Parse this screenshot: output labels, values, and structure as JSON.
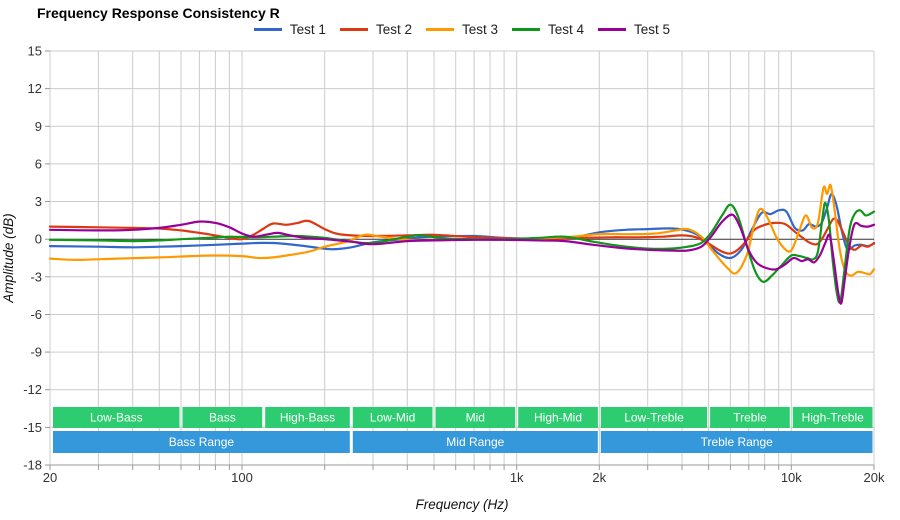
{
  "title": "Frequency Response Consistency R",
  "axes": {
    "x": {
      "label": "Frequency (Hz)",
      "scale": "log",
      "min": 20,
      "max": 20000,
      "ticks": [
        {
          "f": 20,
          "label": "20"
        },
        {
          "f": 100,
          "label": "100"
        },
        {
          "f": 1000,
          "label": "1k"
        },
        {
          "f": 2000,
          "label": "2k"
        },
        {
          "f": 10000,
          "label": "10k"
        },
        {
          "f": 20000,
          "label": "20k"
        }
      ],
      "gridlines": [
        20,
        30,
        40,
        50,
        60,
        70,
        80,
        90,
        100,
        200,
        300,
        400,
        500,
        600,
        700,
        800,
        900,
        1000,
        2000,
        3000,
        4000,
        5000,
        6000,
        7000,
        8000,
        9000,
        10000,
        20000
      ]
    },
    "y": {
      "label": "Amplitude (dB)",
      "min": -18,
      "max": 15,
      "step": 3,
      "ticks": [
        15,
        12,
        9,
        6,
        3,
        0,
        -3,
        -6,
        -9,
        -12,
        -15,
        -18
      ]
    }
  },
  "colors": {
    "grid": "#cccccc",
    "axis_line": "#999999",
    "zero_line": "#333333",
    "band_green": "#2ecc71",
    "band_blue": "#3498db",
    "band_text": "#ffffff"
  },
  "bands": {
    "sub": [
      {
        "label": "Low-Bass",
        "from": 20,
        "to": 60
      },
      {
        "label": "Bass",
        "from": 60,
        "to": 120
      },
      {
        "label": "High-Bass",
        "from": 120,
        "to": 250
      },
      {
        "label": "Low-Mid",
        "from": 250,
        "to": 500
      },
      {
        "label": "Mid",
        "from": 500,
        "to": 1000
      },
      {
        "label": "High-Mid",
        "from": 1000,
        "to": 2000
      },
      {
        "label": "Low-Treble",
        "from": 2000,
        "to": 5000
      },
      {
        "label": "Treble",
        "from": 5000,
        "to": 10000
      },
      {
        "label": "High-Treble",
        "from": 10000,
        "to": 20000
      }
    ],
    "ranges": [
      {
        "label": "Bass Range",
        "from": 20,
        "to": 250
      },
      {
        "label": "Mid Range",
        "from": 250,
        "to": 2000
      },
      {
        "label": "Treble Range",
        "from": 2000,
        "to": 20000
      }
    ]
  },
  "chart_data": {
    "type": "line",
    "title": "Frequency Response Consistency R",
    "xlabel": "Frequency (Hz)",
    "ylabel": "Amplitude (dB)",
    "x_scale": "log",
    "xlim": [
      20,
      20000
    ],
    "ylim": [
      -18,
      15
    ],
    "grid": true,
    "legend_position": "top",
    "series": [
      {
        "name": "Test 1",
        "color": "#3366CC",
        "points": [
          [
            20,
            -0.55
          ],
          [
            30,
            -0.6
          ],
          [
            40,
            -0.65
          ],
          [
            50,
            -0.6
          ],
          [
            60,
            -0.55
          ],
          [
            80,
            -0.45
          ],
          [
            100,
            -0.35
          ],
          [
            120,
            -0.3
          ],
          [
            140,
            -0.35
          ],
          [
            170,
            -0.55
          ],
          [
            210,
            -0.8
          ],
          [
            250,
            -0.65
          ],
          [
            300,
            -0.25
          ],
          [
            400,
            0.05
          ],
          [
            500,
            0.2
          ],
          [
            700,
            0.25
          ],
          [
            900,
            0.1
          ],
          [
            1200,
            0.05
          ],
          [
            1600,
            0.15
          ],
          [
            2000,
            0.55
          ],
          [
            2500,
            0.75
          ],
          [
            3000,
            0.8
          ],
          [
            3700,
            0.85
          ],
          [
            4300,
            0.6
          ],
          [
            4800,
            0.0
          ],
          [
            5400,
            -1.1
          ],
          [
            6000,
            -1.5
          ],
          [
            6600,
            -0.8
          ],
          [
            7200,
            0.8
          ],
          [
            7800,
            2.1
          ],
          [
            8400,
            2.0
          ],
          [
            9000,
            2.3
          ],
          [
            9600,
            2.2
          ],
          [
            10300,
            0.9
          ],
          [
            11000,
            0.7
          ],
          [
            11600,
            1.2
          ],
          [
            12300,
            1.0
          ],
          [
            12900,
            1.3
          ],
          [
            13500,
            2.5
          ],
          [
            14000,
            3.6
          ],
          [
            14600,
            2.7
          ],
          [
            15300,
            0.6
          ],
          [
            16000,
            -0.8
          ],
          [
            17000,
            -0.5
          ],
          [
            18000,
            -0.45
          ],
          [
            19000,
            -0.55
          ],
          [
            20000,
            -0.35
          ]
        ]
      },
      {
        "name": "Test 2",
        "color": "#DC3912",
        "points": [
          [
            20,
            1.0
          ],
          [
            30,
            0.95
          ],
          [
            40,
            0.9
          ],
          [
            50,
            0.85
          ],
          [
            60,
            0.7
          ],
          [
            70,
            0.5
          ],
          [
            80,
            0.3
          ],
          [
            90,
            0.1
          ],
          [
            100,
            0.0
          ],
          [
            110,
            0.35
          ],
          [
            120,
            0.85
          ],
          [
            130,
            1.25
          ],
          [
            145,
            1.15
          ],
          [
            160,
            1.3
          ],
          [
            175,
            1.45
          ],
          [
            200,
            0.8
          ],
          [
            220,
            0.45
          ],
          [
            250,
            0.3
          ],
          [
            300,
            0.25
          ],
          [
            400,
            0.3
          ],
          [
            500,
            0.35
          ],
          [
            650,
            0.2
          ],
          [
            800,
            0.1
          ],
          [
            1000,
            0.05
          ],
          [
            1300,
            0.05
          ],
          [
            1700,
            0.1
          ],
          [
            2200,
            0.15
          ],
          [
            2800,
            0.15
          ],
          [
            3400,
            0.2
          ],
          [
            4000,
            0.3
          ],
          [
            4500,
            0.15
          ],
          [
            5000,
            -0.35
          ],
          [
            5600,
            -1.0
          ],
          [
            6100,
            -1.1
          ],
          [
            6700,
            -0.4
          ],
          [
            7300,
            0.7
          ],
          [
            7900,
            1.1
          ],
          [
            8700,
            1.3
          ],
          [
            9500,
            1.2
          ],
          [
            10300,
            0.6
          ],
          [
            11000,
            0.1
          ],
          [
            11700,
            -0.3
          ],
          [
            12400,
            -0.4
          ],
          [
            13000,
            0.1
          ],
          [
            13600,
            0.9
          ],
          [
            14200,
            1.6
          ],
          [
            14700,
            1.5
          ],
          [
            15400,
            0.6
          ],
          [
            16200,
            -0.5
          ],
          [
            17000,
            -0.85
          ],
          [
            18000,
            -0.5
          ],
          [
            19000,
            -0.6
          ],
          [
            20000,
            -0.3
          ]
        ]
      },
      {
        "name": "Test 3",
        "color": "#FF9900",
        "points": [
          [
            20,
            -1.55
          ],
          [
            25,
            -1.65
          ],
          [
            35,
            -1.55
          ],
          [
            50,
            -1.45
          ],
          [
            65,
            -1.35
          ],
          [
            80,
            -1.3
          ],
          [
            100,
            -1.35
          ],
          [
            115,
            -1.5
          ],
          [
            130,
            -1.45
          ],
          [
            150,
            -1.25
          ],
          [
            175,
            -1.0
          ],
          [
            200,
            -0.6
          ],
          [
            240,
            -0.2
          ],
          [
            280,
            0.35
          ],
          [
            320,
            0.2
          ],
          [
            400,
            -0.05
          ],
          [
            500,
            -0.1
          ],
          [
            700,
            0.0
          ],
          [
            900,
            -0.05
          ],
          [
            1200,
            0.05
          ],
          [
            1600,
            0.2
          ],
          [
            2000,
            0.4
          ],
          [
            2600,
            0.4
          ],
          [
            3200,
            0.45
          ],
          [
            3800,
            0.7
          ],
          [
            4200,
            0.8
          ],
          [
            4700,
            0.2
          ],
          [
            5200,
            -1.0
          ],
          [
            5800,
            -2.2
          ],
          [
            6300,
            -2.7
          ],
          [
            6900,
            -1.2
          ],
          [
            7300,
            1.0
          ],
          [
            7700,
            2.4
          ],
          [
            8200,
            1.7
          ],
          [
            8800,
            0.2
          ],
          [
            9400,
            -0.7
          ],
          [
            10000,
            -0.9
          ],
          [
            10700,
            0.7
          ],
          [
            11300,
            1.9
          ],
          [
            11900,
            0.9
          ],
          [
            12500,
            1.3
          ],
          [
            13100,
            4.1
          ],
          [
            13500,
            3.6
          ],
          [
            13900,
            4.3
          ],
          [
            14400,
            2.2
          ],
          [
            15000,
            -0.8
          ],
          [
            15700,
            -2.5
          ],
          [
            16500,
            -2.9
          ],
          [
            17500,
            -2.6
          ],
          [
            18500,
            -2.7
          ],
          [
            19300,
            -2.8
          ],
          [
            20000,
            -2.4
          ]
        ]
      },
      {
        "name": "Test 4",
        "color": "#109618",
        "points": [
          [
            20,
            -0.05
          ],
          [
            30,
            -0.1
          ],
          [
            40,
            -0.15
          ],
          [
            50,
            -0.1
          ],
          [
            60,
            0.0
          ],
          [
            75,
            0.1
          ],
          [
            90,
            0.2
          ],
          [
            110,
            0.15
          ],
          [
            130,
            0.2
          ],
          [
            160,
            0.25
          ],
          [
            200,
            0.1
          ],
          [
            250,
            -0.2
          ],
          [
            300,
            -0.3
          ],
          [
            400,
            0.2
          ],
          [
            450,
            0.3
          ],
          [
            550,
            0.05
          ],
          [
            700,
            0.0
          ],
          [
            900,
            0.0
          ],
          [
            1200,
            0.1
          ],
          [
            1500,
            0.2
          ],
          [
            1900,
            -0.2
          ],
          [
            2400,
            -0.55
          ],
          [
            3000,
            -0.75
          ],
          [
            3600,
            -0.75
          ],
          [
            4200,
            -0.6
          ],
          [
            4700,
            -0.3
          ],
          [
            5100,
            0.5
          ],
          [
            5600,
            1.9
          ],
          [
            6000,
            2.75
          ],
          [
            6400,
            1.8
          ],
          [
            6900,
            -0.6
          ],
          [
            7400,
            -2.6
          ],
          [
            7900,
            -3.4
          ],
          [
            8500,
            -2.9
          ],
          [
            9200,
            -2.1
          ],
          [
            10000,
            -1.3
          ],
          [
            10700,
            -1.35
          ],
          [
            11400,
            -1.5
          ],
          [
            12000,
            -1.6
          ],
          [
            12500,
            -1.0
          ],
          [
            13000,
            1.8
          ],
          [
            13300,
            2.9
          ],
          [
            13700,
            1.5
          ],
          [
            14200,
            -2.0
          ],
          [
            14700,
            -4.5
          ],
          [
            15100,
            -4.9
          ],
          [
            15600,
            -2.5
          ],
          [
            16300,
            0.8
          ],
          [
            17000,
            2.0
          ],
          [
            17800,
            2.3
          ],
          [
            18600,
            1.9
          ],
          [
            19300,
            2.0
          ],
          [
            20000,
            2.2
          ]
        ]
      },
      {
        "name": "Test 5",
        "color": "#990099",
        "points": [
          [
            20,
            0.75
          ],
          [
            30,
            0.7
          ],
          [
            40,
            0.75
          ],
          [
            50,
            0.9
          ],
          [
            60,
            1.15
          ],
          [
            70,
            1.4
          ],
          [
            80,
            1.3
          ],
          [
            90,
            0.95
          ],
          [
            100,
            0.45
          ],
          [
            110,
            0.2
          ],
          [
            125,
            0.4
          ],
          [
            135,
            0.5
          ],
          [
            150,
            0.3
          ],
          [
            170,
            0.1
          ],
          [
            200,
            0.0
          ],
          [
            250,
            -0.2
          ],
          [
            300,
            -0.4
          ],
          [
            400,
            -0.15
          ],
          [
            500,
            -0.1
          ],
          [
            700,
            -0.05
          ],
          [
            900,
            -0.05
          ],
          [
            1200,
            -0.1
          ],
          [
            1500,
            -0.15
          ],
          [
            1900,
            -0.45
          ],
          [
            2400,
            -0.7
          ],
          [
            3000,
            -0.85
          ],
          [
            3600,
            -0.9
          ],
          [
            4200,
            -0.9
          ],
          [
            4700,
            -0.6
          ],
          [
            5100,
            0.2
          ],
          [
            5600,
            1.4
          ],
          [
            6100,
            1.95
          ],
          [
            6500,
            1.0
          ],
          [
            7000,
            -0.9
          ],
          [
            7500,
            -1.9
          ],
          [
            8100,
            -2.3
          ],
          [
            8800,
            -2.4
          ],
          [
            9500,
            -2.0
          ],
          [
            10200,
            -1.5
          ],
          [
            10900,
            -1.75
          ],
          [
            11500,
            -1.6
          ],
          [
            12100,
            -1.85
          ],
          [
            12700,
            -1.3
          ],
          [
            13300,
            -0.3
          ],
          [
            13800,
            0.3
          ],
          [
            14300,
            -1.8
          ],
          [
            14800,
            -4.2
          ],
          [
            15200,
            -5.1
          ],
          [
            15700,
            -3.0
          ],
          [
            16300,
            -0.5
          ],
          [
            17000,
            1.2
          ],
          [
            18000,
            1.05
          ],
          [
            19000,
            1.0
          ],
          [
            20000,
            1.15
          ]
        ]
      }
    ]
  }
}
